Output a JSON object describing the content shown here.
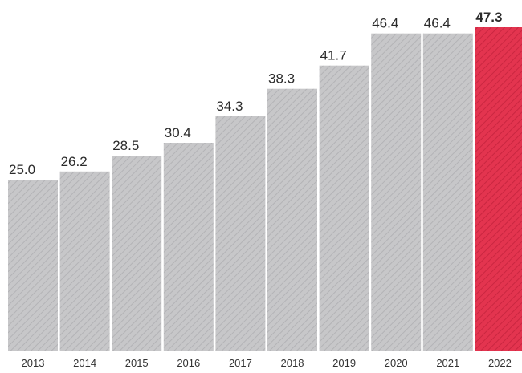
{
  "chart_data": {
    "type": "bar",
    "title": "",
    "xlabel": "",
    "ylabel": "",
    "categories": [
      "2013",
      "2014",
      "2015",
      "2016",
      "2017",
      "2018",
      "2019",
      "2020",
      "2021",
      "2022"
    ],
    "values": [
      25.0,
      26.2,
      28.5,
      30.4,
      34.3,
      38.3,
      41.7,
      46.4,
      46.4,
      47.3
    ],
    "value_labels": [
      "25.0",
      "26.2",
      "28.5",
      "30.4",
      "34.3",
      "38.3",
      "41.7",
      "46.4",
      "46.4",
      "47.3"
    ],
    "highlight_category": "2022",
    "ylim": [
      0,
      47.3
    ],
    "y_axis_visible": false,
    "grid": false,
    "legend": "none",
    "colors": {
      "bar": "#c7c7c9",
      "bar_hatch": "#b3b3b6",
      "highlight": "#e3344f",
      "highlight_hatch": "#c92640",
      "baseline": "#777777"
    }
  }
}
